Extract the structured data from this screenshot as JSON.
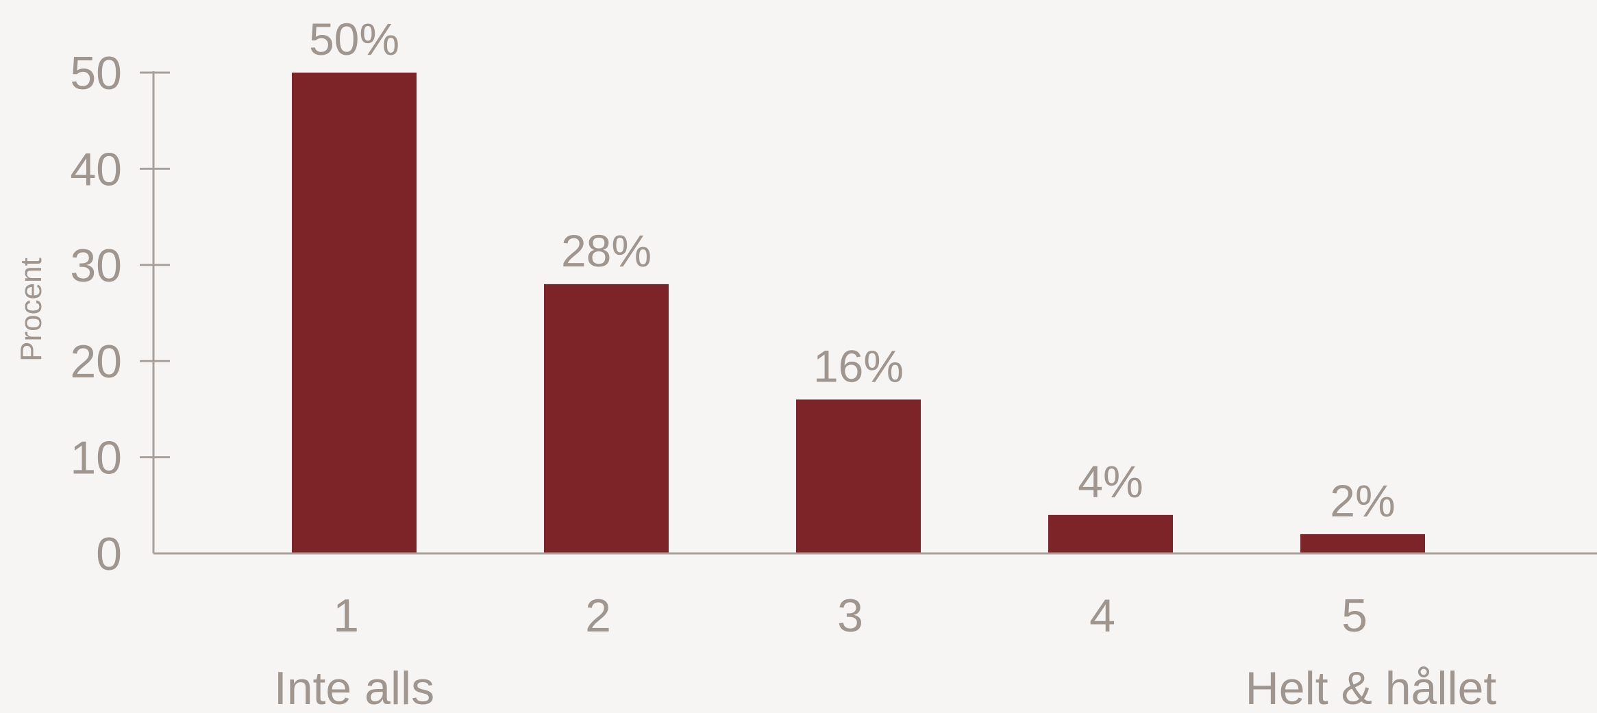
{
  "chart_data": {
    "type": "bar",
    "categories": [
      "1",
      "2",
      "3",
      "4",
      "5"
    ],
    "values": [
      50,
      28,
      16,
      4,
      2
    ],
    "data_labels": [
      "50%",
      "28%",
      "16%",
      "4%",
      "2%"
    ],
    "ylabel": "Procent",
    "xlabel": "",
    "ylim": [
      0,
      50
    ],
    "yticks": [
      0,
      10,
      20,
      30,
      40,
      50
    ],
    "scale_anchors": {
      "low": "Inte alls",
      "high": "Helt & hållet"
    },
    "bar_color": "#7d2429",
    "text_color": "#a09690",
    "grid": false,
    "legend": "none"
  }
}
